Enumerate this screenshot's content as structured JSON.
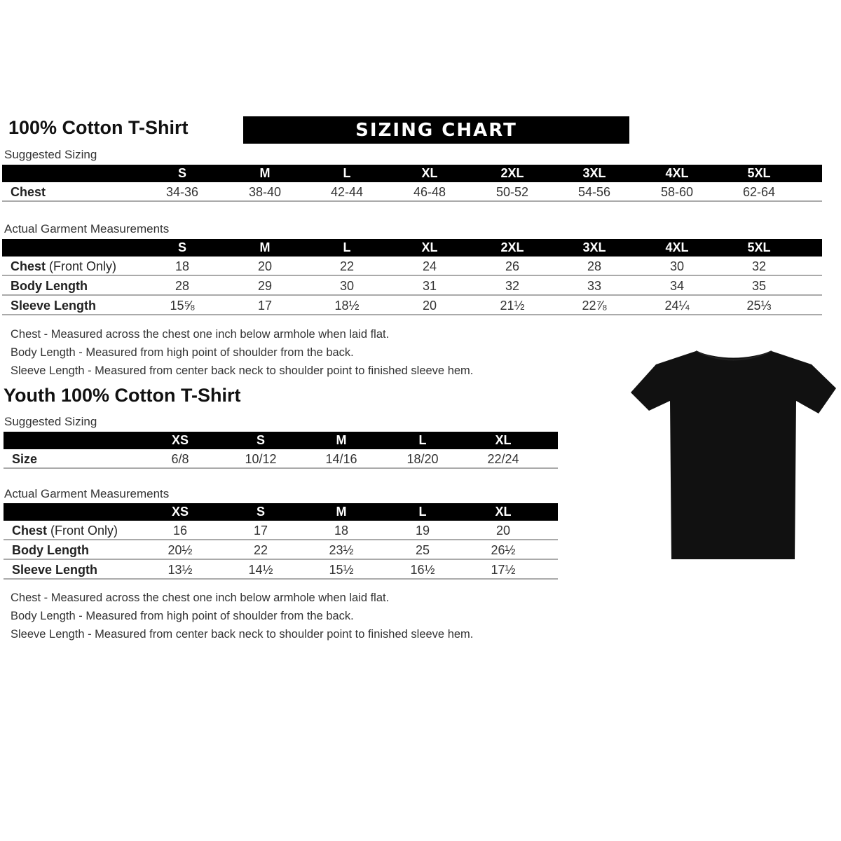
{
  "adult": {
    "title": "100% Cotton T-Shirt",
    "banner": "SIZING CHART",
    "suggested_label": "Suggested Sizing",
    "sizes": [
      "S",
      "M",
      "L",
      "XL",
      "2XL",
      "3XL",
      "4XL",
      "5XL"
    ],
    "suggested_rows": [
      {
        "label": "Chest",
        "values": [
          "34-36",
          "38-40",
          "42-44",
          "46-48",
          "50-52",
          "54-56",
          "58-60",
          "62-64"
        ]
      }
    ],
    "actual_label": "Actual Garment Measurements",
    "actual_rows": [
      {
        "label": "Chest",
        "label_note": " (Front Only)",
        "values": [
          "18",
          "20",
          "22",
          "24",
          "26",
          "28",
          "30",
          "32"
        ]
      },
      {
        "label": "Body Length",
        "values": [
          "28",
          "29",
          "30",
          "31",
          "32",
          "33",
          "34",
          "35"
        ]
      },
      {
        "label": "Sleeve Length",
        "values": [
          "15⅝",
          "17",
          "18½",
          "20",
          "21½",
          "22⅞",
          "24¼",
          "25⅓"
        ]
      }
    ],
    "notes": [
      "Chest - Measured across the chest one inch below armhole when laid flat.",
      "Body Length - Measured from high point of shoulder from the back.",
      "Sleeve Length - Measured from center back neck to shoulder point to finished sleeve hem."
    ]
  },
  "youth": {
    "title": "Youth 100% Cotton T-Shirt",
    "suggested_label": "Suggested Sizing",
    "sizes": [
      "XS",
      "S",
      "M",
      "L",
      "XL"
    ],
    "suggested_rows": [
      {
        "label": "Size",
        "values": [
          "6/8",
          "10/12",
          "14/16",
          "18/20",
          "22/24"
        ]
      }
    ],
    "actual_label": "Actual Garment Measurements",
    "actual_rows": [
      {
        "label": "Chest",
        "label_note": " (Front Only)",
        "values": [
          "16",
          "17",
          "18",
          "19",
          "20"
        ]
      },
      {
        "label": "Body Length",
        "values": [
          "20½",
          "22",
          "23½",
          "25",
          "26½"
        ]
      },
      {
        "label": "Sleeve Length",
        "values": [
          "13½",
          "14½",
          "15½",
          "16½",
          "17½"
        ]
      }
    ],
    "notes": [
      "Chest - Measured across the chest one inch below armhole when laid flat.",
      "Body Length - Measured from high point of shoulder from the back.",
      "Sleeve Length - Measured from center back neck to shoulder point to finished sleeve hem."
    ]
  },
  "image": {
    "name": "black-tshirt",
    "color": "#111111"
  }
}
